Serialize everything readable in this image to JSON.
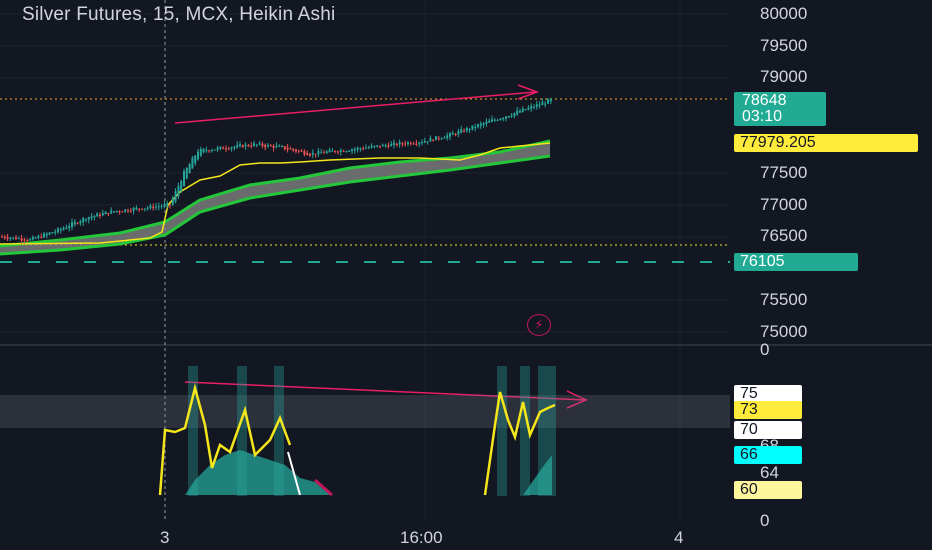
{
  "header": {
    "title": "Silver Futures, 15, MCX, Heikin Ashi"
  },
  "price_axis": {
    "ticks": [
      "80000",
      "79500",
      "79000",
      "77500",
      "77000",
      "76500",
      "75500",
      "75000"
    ],
    "zero_label": "0"
  },
  "price_tags": {
    "last_price": "78648",
    "countdown": "03:10",
    "ma_value": "77979.205",
    "support_value": "76105"
  },
  "indicator_axis": {
    "ticks": [
      "64",
      "0"
    ],
    "badges": [
      "75",
      "73",
      "70",
      "68",
      "66",
      "60"
    ]
  },
  "time_axis": {
    "labels": [
      "3",
      "16:00",
      "4"
    ]
  },
  "colors": {
    "background": "#131722",
    "up": "#26a69a",
    "down": "#ef5350",
    "ma_yellow": "#f5e61b",
    "band_green": "#24c63a",
    "trend_pink": "#e91e63",
    "price_tag": "#22ab94",
    "badge_yellow": "#ffeb3b",
    "badge_cyan": "#00ffff",
    "badge_pale": "#fff59d"
  },
  "chart_data": {
    "type": "candlestick",
    "title": "Silver Futures, 15, MCX, Heikin Ashi",
    "price_range": [
      74800,
      80100
    ],
    "last_price": 78648,
    "reference_lines": {
      "ma": 77979.205,
      "support": 76105
    },
    "approx_close_path": [
      [
        0,
        76500
      ],
      [
        10,
        76450
      ],
      [
        20,
        76600
      ],
      [
        30,
        76800
      ],
      [
        40,
        76900
      ],
      [
        50,
        76950
      ],
      [
        60,
        77000
      ],
      [
        65,
        77500
      ],
      [
        70,
        77850
      ],
      [
        80,
        77900
      ],
      [
        90,
        77950
      ],
      [
        100,
        77900
      ],
      [
        110,
        77800
      ],
      [
        120,
        77850
      ],
      [
        130,
        77900
      ],
      [
        140,
        77950
      ],
      [
        150,
        78000
      ],
      [
        160,
        78100
      ],
      [
        170,
        78250
      ],
      [
        180,
        78400
      ],
      [
        190,
        78550
      ],
      [
        196,
        78648
      ]
    ],
    "indicator": {
      "visible_levels": [
        75,
        73,
        70,
        68,
        66,
        64,
        60
      ],
      "zero_label": 0
    }
  }
}
